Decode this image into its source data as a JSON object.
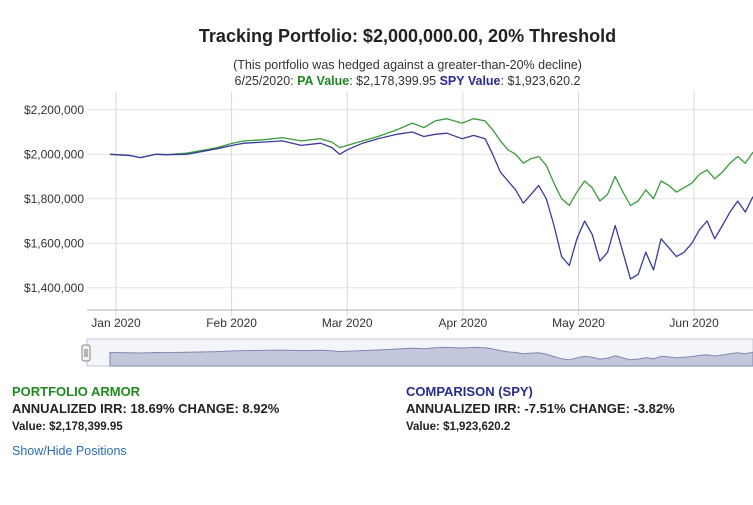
{
  "chart_data": {
    "type": "line",
    "title": "Tracking Portfolio: $2,000,000.00, 20% Threshold",
    "subtitle": "(This portfolio was hedged against a greater-than-20% decline)",
    "status": {
      "date": "6/25/2020:",
      "pa_label": "PA Value",
      "pa_value": ": $2,178,399.95",
      "spy_label": "SPY Value",
      "spy_value": ": $1,923,620.2"
    },
    "x_labels": [
      "Jan 2020",
      "Feb 2020",
      "Mar 2020",
      "Apr 2020",
      "May 2020",
      "Jun 2020"
    ],
    "y_ticks": [
      {
        "value": 1400000,
        "label": "$1,400,000"
      },
      {
        "value": 1600000,
        "label": "$1,600,000"
      },
      {
        "value": 1800000,
        "label": "$1,800,000"
      },
      {
        "value": 2000000,
        "label": "$2,000,000"
      },
      {
        "value": 2200000,
        "label": "$2,200,000"
      }
    ],
    "ylim": [
      1300000,
      2280000
    ],
    "xlim": [
      -6,
      168
    ],
    "series": [
      {
        "name": "Portfolio Armor",
        "color": "#3a9c3a",
        "points": [
          [
            0,
            2000000
          ],
          [
            5,
            1995000
          ],
          [
            8,
            1985000
          ],
          [
            12,
            2000000
          ],
          [
            15,
            1998000
          ],
          [
            20,
            2005000
          ],
          [
            25,
            2020000
          ],
          [
            28,
            2030000
          ],
          [
            32,
            2050000
          ],
          [
            35,
            2060000
          ],
          [
            40,
            2065000
          ],
          [
            45,
            2075000
          ],
          [
            50,
            2060000
          ],
          [
            55,
            2070000
          ],
          [
            58,
            2055000
          ],
          [
            60,
            2030000
          ],
          [
            62,
            2040000
          ],
          [
            66,
            2060000
          ],
          [
            70,
            2080000
          ],
          [
            75,
            2110000
          ],
          [
            79,
            2140000
          ],
          [
            82,
            2120000
          ],
          [
            85,
            2150000
          ],
          [
            88,
            2160000
          ],
          [
            92,
            2140000
          ],
          [
            95,
            2160000
          ],
          [
            98,
            2150000
          ],
          [
            100,
            2110000
          ],
          [
            102,
            2060000
          ],
          [
            104,
            2020000
          ],
          [
            106,
            2000000
          ],
          [
            108,
            1960000
          ],
          [
            110,
            1980000
          ],
          [
            112,
            1990000
          ],
          [
            114,
            1950000
          ],
          [
            116,
            1870000
          ],
          [
            118,
            1800000
          ],
          [
            120,
            1770000
          ],
          [
            122,
            1830000
          ],
          [
            124,
            1880000
          ],
          [
            126,
            1850000
          ],
          [
            128,
            1790000
          ],
          [
            130,
            1820000
          ],
          [
            132,
            1900000
          ],
          [
            134,
            1830000
          ],
          [
            136,
            1770000
          ],
          [
            138,
            1790000
          ],
          [
            140,
            1840000
          ],
          [
            142,
            1800000
          ],
          [
            144,
            1880000
          ],
          [
            146,
            1860000
          ],
          [
            148,
            1830000
          ],
          [
            150,
            1850000
          ],
          [
            152,
            1870000
          ],
          [
            154,
            1910000
          ],
          [
            156,
            1930000
          ],
          [
            158,
            1890000
          ],
          [
            160,
            1920000
          ],
          [
            162,
            1960000
          ],
          [
            164,
            1990000
          ],
          [
            166,
            1960000
          ],
          [
            168,
            2010000
          ]
        ]
      },
      {
        "name": "SPY",
        "color": "#3a3aa0",
        "points": [
          [
            0,
            2000000
          ],
          [
            5,
            1995000
          ],
          [
            8,
            1985000
          ],
          [
            12,
            2000000
          ],
          [
            15,
            1998000
          ],
          [
            20,
            2000000
          ],
          [
            25,
            2015000
          ],
          [
            28,
            2025000
          ],
          [
            32,
            2040000
          ],
          [
            35,
            2050000
          ],
          [
            40,
            2055000
          ],
          [
            45,
            2060000
          ],
          [
            50,
            2040000
          ],
          [
            55,
            2050000
          ],
          [
            58,
            2030000
          ],
          [
            60,
            2000000
          ],
          [
            62,
            2020000
          ],
          [
            66,
            2050000
          ],
          [
            70,
            2070000
          ],
          [
            75,
            2090000
          ],
          [
            79,
            2100000
          ],
          [
            82,
            2080000
          ],
          [
            85,
            2090000
          ],
          [
            88,
            2095000
          ],
          [
            92,
            2070000
          ],
          [
            95,
            2085000
          ],
          [
            98,
            2070000
          ],
          [
            100,
            2000000
          ],
          [
            102,
            1920000
          ],
          [
            104,
            1880000
          ],
          [
            106,
            1840000
          ],
          [
            108,
            1780000
          ],
          [
            110,
            1820000
          ],
          [
            112,
            1860000
          ],
          [
            114,
            1800000
          ],
          [
            116,
            1680000
          ],
          [
            118,
            1540000
          ],
          [
            120,
            1500000
          ],
          [
            122,
            1620000
          ],
          [
            124,
            1700000
          ],
          [
            126,
            1640000
          ],
          [
            128,
            1520000
          ],
          [
            130,
            1560000
          ],
          [
            132,
            1680000
          ],
          [
            134,
            1560000
          ],
          [
            136,
            1440000
          ],
          [
            138,
            1460000
          ],
          [
            140,
            1560000
          ],
          [
            142,
            1480000
          ],
          [
            144,
            1620000
          ],
          [
            146,
            1580000
          ],
          [
            148,
            1540000
          ],
          [
            150,
            1560000
          ],
          [
            152,
            1600000
          ],
          [
            154,
            1660000
          ],
          [
            156,
            1700000
          ],
          [
            158,
            1620000
          ],
          [
            160,
            1680000
          ],
          [
            162,
            1740000
          ],
          [
            164,
            1790000
          ],
          [
            166,
            1740000
          ],
          [
            168,
            1810000
          ]
        ]
      }
    ]
  },
  "portfolio_armor": {
    "heading": "PORTFOLIO ARMOR",
    "irr": "ANNUALIZED IRR: 18.69% CHANGE: 8.92%",
    "value": "Value: $2,178,399.95"
  },
  "comparison": {
    "heading": "COMPARISON (SPY)",
    "irr": "ANNUALIZED IRR: -7.51% CHANGE: -3.82%",
    "value": "Value: $1,923,620.2"
  },
  "toggle_link": "Show/Hide Positions"
}
